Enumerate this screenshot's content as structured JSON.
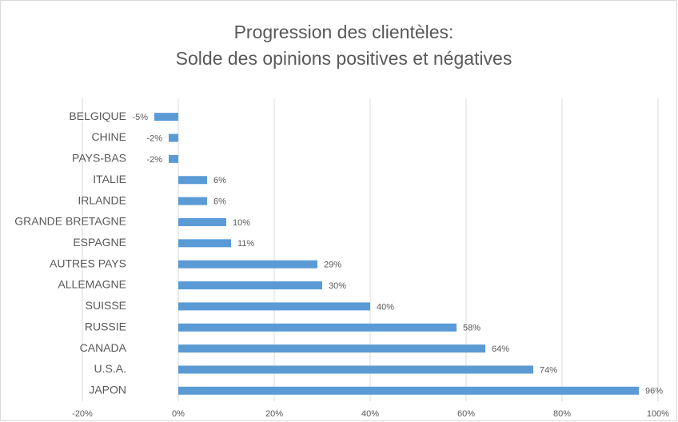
{
  "chart_data": {
    "type": "bar",
    "orientation": "horizontal",
    "title": [
      "Progression des clientèles:",
      "Solde des opinions positives et négatives"
    ],
    "categories": [
      "BELGIQUE",
      "CHINE",
      "PAYS-BAS",
      "ITALIE",
      "IRLANDE",
      "GRANDE BRETAGNE",
      "ESPAGNE",
      "AUTRES PAYS",
      "ALLEMAGNE",
      "SUISSE",
      "RUSSIE",
      "CANADA",
      "U.S.A.",
      "JAPON"
    ],
    "values": [
      -5,
      -2,
      -2,
      6,
      6,
      10,
      11,
      29,
      30,
      40,
      58,
      64,
      74,
      96
    ],
    "value_labels": [
      "-5%",
      "-2%",
      "-2%",
      "6%",
      "6%",
      "10%",
      "11%",
      "29%",
      "30%",
      "40%",
      "58%",
      "64%",
      "74%",
      "96%"
    ],
    "color": "#5b9bd5",
    "xlim": [
      -20,
      100
    ],
    "xticks": [
      {
        "value": -20,
        "label": "-20%"
      },
      {
        "value": 0,
        "label": "0%"
      },
      {
        "value": 20,
        "label": "20%"
      },
      {
        "value": 40,
        "label": "40%"
      },
      {
        "value": 60,
        "label": "60%"
      },
      {
        "value": 80,
        "label": "80%"
      },
      {
        "value": 100,
        "label": "100%"
      }
    ],
    "grid": true
  }
}
